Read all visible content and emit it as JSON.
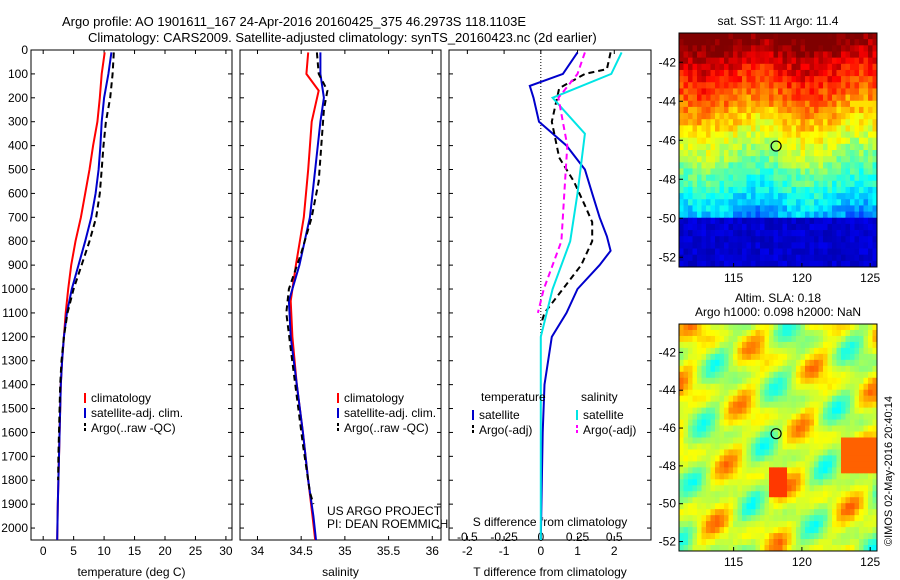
{
  "header": {
    "line1": "Argo profile: AO 1901611_167 24-Apr-2016 20160425_375 46.2973S 118.1103E",
    "line2": "Climatology: CARS2009. Satellite-adjusted climatology: synTS_20160423.nc (2d earlier)"
  },
  "colors": {
    "climatology": "#ff0000",
    "satellite": "#0000cc",
    "argo": "#000000",
    "salinity_satellite": "#00e5e5",
    "salinity_argo": "#ff00ff"
  },
  "chart_data": [
    {
      "type": "line",
      "xlabel": "temperature (deg C)",
      "ylabel": "",
      "xlim": [
        -2,
        31
      ],
      "ylim": [
        2050,
        0
      ],
      "x_ticks": [
        0,
        5,
        10,
        15,
        20,
        25,
        30
      ],
      "y_ticks": [
        0,
        100,
        200,
        300,
        400,
        500,
        600,
        700,
        800,
        900,
        1000,
        1100,
        1200,
        1300,
        1400,
        1500,
        1600,
        1700,
        1800,
        1900,
        2000
      ],
      "legend": [
        "climatology",
        "satellite-adj. clim.",
        "Argo(..raw -QC)"
      ],
      "series": [
        {
          "name": "climatology",
          "style": "solid",
          "color": "#ff0000",
          "points": [
            [
              10.1,
              10
            ],
            [
              9.6,
              100
            ],
            [
              9.3,
              200
            ],
            [
              8.9,
              300
            ],
            [
              8.2,
              400
            ],
            [
              7.6,
              500
            ],
            [
              6.9,
              600
            ],
            [
              6.2,
              700
            ],
            [
              5.3,
              800
            ],
            [
              4.6,
              900
            ],
            [
              4.1,
              1000
            ],
            [
              3.7,
              1100
            ],
            [
              3.4,
              1200
            ],
            [
              3.1,
              1300
            ],
            [
              2.9,
              1400
            ],
            [
              2.8,
              1500
            ],
            [
              2.7,
              1600
            ],
            [
              2.6,
              1700
            ],
            [
              2.5,
              1800
            ],
            [
              2.4,
              1900
            ],
            [
              2.3,
              2050
            ]
          ]
        },
        {
          "name": "satellite-adj. clim.",
          "style": "solid",
          "color": "#0000cc",
          "points": [
            [
              11.2,
              10
            ],
            [
              10.7,
              100
            ],
            [
              10.0,
              200
            ],
            [
              9.6,
              300
            ],
            [
              9.4,
              400
            ],
            [
              9.1,
              500
            ],
            [
              8.6,
              600
            ],
            [
              7.9,
              700
            ],
            [
              6.9,
              800
            ],
            [
              5.8,
              900
            ],
            [
              4.7,
              1000
            ],
            [
              3.9,
              1100
            ],
            [
              3.4,
              1200
            ],
            [
              3.1,
              1300
            ],
            [
              2.9,
              1400
            ],
            [
              2.8,
              1500
            ],
            [
              2.7,
              1600
            ],
            [
              2.6,
              1700
            ],
            [
              2.5,
              1800
            ],
            [
              2.4,
              1900
            ],
            [
              2.3,
              2050
            ]
          ]
        },
        {
          "name": "Argo(..raw -QC)",
          "style": "dashed",
          "color": "#000000",
          "points": [
            [
              11.6,
              10
            ],
            [
              11.4,
              100
            ],
            [
              11.0,
              200
            ],
            [
              10.3,
              300
            ],
            [
              9.9,
              400
            ],
            [
              9.6,
              500
            ],
            [
              9.3,
              600
            ],
            [
              8.7,
              700
            ],
            [
              7.6,
              800
            ],
            [
              6.3,
              900
            ],
            [
              5.0,
              1000
            ],
            [
              4.0,
              1100
            ],
            [
              3.4,
              1200
            ],
            [
              3.0,
              1300
            ],
            [
              2.8,
              1400
            ],
            [
              2.7,
              1500
            ],
            [
              2.6,
              1600
            ],
            [
              2.5,
              1700
            ],
            [
              2.45,
              1800
            ]
          ]
        }
      ]
    },
    {
      "type": "line",
      "xlabel": "salinity",
      "ylabel": "",
      "xlim": [
        33.8,
        36.1
      ],
      "ylim": [
        2050,
        0
      ],
      "x_ticks": [
        34,
        34.5,
        35,
        35.5,
        36
      ],
      "legend": [
        "climatology",
        "satellite-adj. clim.",
        "Argo(..raw -QC)"
      ],
      "series": [
        {
          "name": "climatology",
          "style": "solid",
          "color": "#ff0000",
          "points": [
            [
              34.58,
              10
            ],
            [
              34.56,
              100
            ],
            [
              34.7,
              170
            ],
            [
              34.62,
              300
            ],
            [
              34.58,
              500
            ],
            [
              34.53,
              700
            ],
            [
              34.44,
              900
            ],
            [
              34.38,
              1050
            ],
            [
              34.4,
              1200
            ],
            [
              34.45,
              1400
            ],
            [
              34.52,
              1600
            ],
            [
              34.58,
              1800
            ],
            [
              34.63,
              1950
            ],
            [
              34.66,
              2050
            ]
          ]
        },
        {
          "name": "satellite-adj. clim.",
          "style": "solid",
          "color": "#0000cc",
          "points": [
            [
              34.72,
              10
            ],
            [
              34.72,
              100
            ],
            [
              34.76,
              200
            ],
            [
              34.72,
              300
            ],
            [
              34.66,
              500
            ],
            [
              34.6,
              700
            ],
            [
              34.48,
              900
            ],
            [
              34.36,
              1050
            ],
            [
              34.38,
              1200
            ],
            [
              34.45,
              1400
            ],
            [
              34.52,
              1600
            ],
            [
              34.58,
              1800
            ],
            [
              34.64,
              1950
            ],
            [
              34.67,
              2050
            ]
          ]
        },
        {
          "name": "Argo(..raw -QC)",
          "style": "dashed",
          "color": "#000000",
          "points": [
            [
              34.68,
              10
            ],
            [
              34.7,
              100
            ],
            [
              34.8,
              170
            ],
            [
              34.76,
              250
            ],
            [
              34.73,
              400
            ],
            [
              34.7,
              550
            ],
            [
              34.62,
              700
            ],
            [
              34.5,
              850
            ],
            [
              34.36,
              1000
            ],
            [
              34.33,
              1100
            ],
            [
              34.38,
              1250
            ],
            [
              34.45,
              1450
            ],
            [
              34.52,
              1650
            ],
            [
              34.6,
              1850
            ],
            [
              34.64,
              1900
            ]
          ]
        }
      ]
    },
    {
      "type": "line",
      "xlabel": "T difference from climatology",
      "x2label": "S difference from climatology",
      "xlim": [
        -2.5,
        3
      ],
      "x2lim": [
        -0.625,
        0.75
      ],
      "ylim": [
        2050,
        0
      ],
      "x_ticks": [
        -2,
        -1,
        0,
        1,
        2
      ],
      "x2_ticks": [
        -0.5,
        -0.25,
        0,
        0.25,
        0.5
      ],
      "x2_tick_labels": [
        "-0.5",
        "-0.25",
        "0",
        "0.25",
        "0.5"
      ],
      "legend_titles": [
        "temperature",
        "salinity"
      ],
      "legend": [
        "satellite",
        "Argo(-adj)",
        "satellite",
        "Argo(-adj)"
      ],
      "series": [
        {
          "name": "satellite",
          "group": "temperature",
          "axis": "T",
          "style": "solid",
          "color": "#0000cc",
          "points": [
            [
              1.0,
              10
            ],
            [
              0.6,
              100
            ],
            [
              -0.3,
              150
            ],
            [
              -0.2,
              200
            ],
            [
              -0.05,
              300
            ],
            [
              0.7,
              400
            ],
            [
              1.2,
              500
            ],
            [
              1.4,
              600
            ],
            [
              1.6,
              700
            ],
            [
              1.8,
              780
            ],
            [
              1.9,
              840
            ],
            [
              1.6,
              900
            ],
            [
              1.0,
              1000
            ],
            [
              0.7,
              1100
            ],
            [
              0.3,
              1200
            ],
            [
              0.1,
              1400
            ],
            [
              0.05,
              1600
            ],
            [
              0.0,
              2050
            ]
          ]
        },
        {
          "name": "Argo(-adj)",
          "group": "temperature",
          "axis": "T",
          "style": "dashed",
          "color": "#000000",
          "points": [
            [
              1.9,
              10
            ],
            [
              1.8,
              80
            ],
            [
              1.2,
              100
            ],
            [
              0.5,
              160
            ],
            [
              0.3,
              300
            ],
            [
              0.5,
              450
            ],
            [
              0.9,
              550
            ],
            [
              1.2,
              650
            ],
            [
              1.4,
              720
            ],
            [
              1.4,
              800
            ],
            [
              1.1,
              900
            ],
            [
              0.6,
              1000
            ],
            [
              0.1,
              1100
            ],
            [
              0.0,
              1150
            ]
          ]
        },
        {
          "name": "satellite",
          "group": "salinity",
          "axis": "S",
          "style": "solid",
          "color": "#00e5e5",
          "points": [
            [
              0.55,
              10
            ],
            [
              0.48,
              100
            ],
            [
              0.08,
              200
            ],
            [
              0.3,
              350
            ],
            [
              0.25,
              600
            ],
            [
              0.2,
              800
            ],
            [
              0.08,
              1000
            ],
            [
              0.0,
              1200
            ],
            [
              0.0,
              1600
            ],
            [
              0.0,
              2050
            ]
          ]
        },
        {
          "name": "Argo(-adj)",
          "group": "salinity",
          "axis": "S",
          "style": "dashed",
          "color": "#ff00ff",
          "points": [
            [
              0.3,
              10
            ],
            [
              0.25,
              100
            ],
            [
              0.12,
              200
            ],
            [
              0.18,
              400
            ],
            [
              0.16,
              600
            ],
            [
              0.14,
              800
            ],
            [
              0.08,
              900
            ],
            [
              0.02,
              1000
            ],
            [
              -0.02,
              1100
            ]
          ]
        }
      ],
      "credits": [
        "US ARGO PROJECT",
        "PI: DEAN ROEMMICH"
      ]
    },
    {
      "type": "heatmap",
      "title": "sat. SST: 11 Argo: 11.4",
      "xlim": [
        111,
        125.5
      ],
      "ylim": [
        -52.5,
        -40.5
      ],
      "x_ticks": [
        115,
        120,
        125
      ],
      "y_ticks": [
        -42,
        -44,
        -46,
        -48,
        -50,
        -52
      ],
      "marker": {
        "lon": 118.1103,
        "lat": -46.2973
      }
    },
    {
      "type": "heatmap",
      "title": "Altim. SLA: 0.18",
      "subtitle": "Argo h1000: 0.098 h2000: NaN",
      "xlim": [
        111,
        125.5
      ],
      "ylim": [
        -52.5,
        -40.5
      ],
      "x_ticks": [
        115,
        120,
        125
      ],
      "y_ticks": [
        -42,
        -44,
        -46,
        -48,
        -50,
        -52
      ],
      "marker": {
        "lon": 118.1103,
        "lat": -46.2973
      }
    }
  ],
  "footer": {
    "stamp": "©IMOS 02-May-2016 20:40:14"
  }
}
